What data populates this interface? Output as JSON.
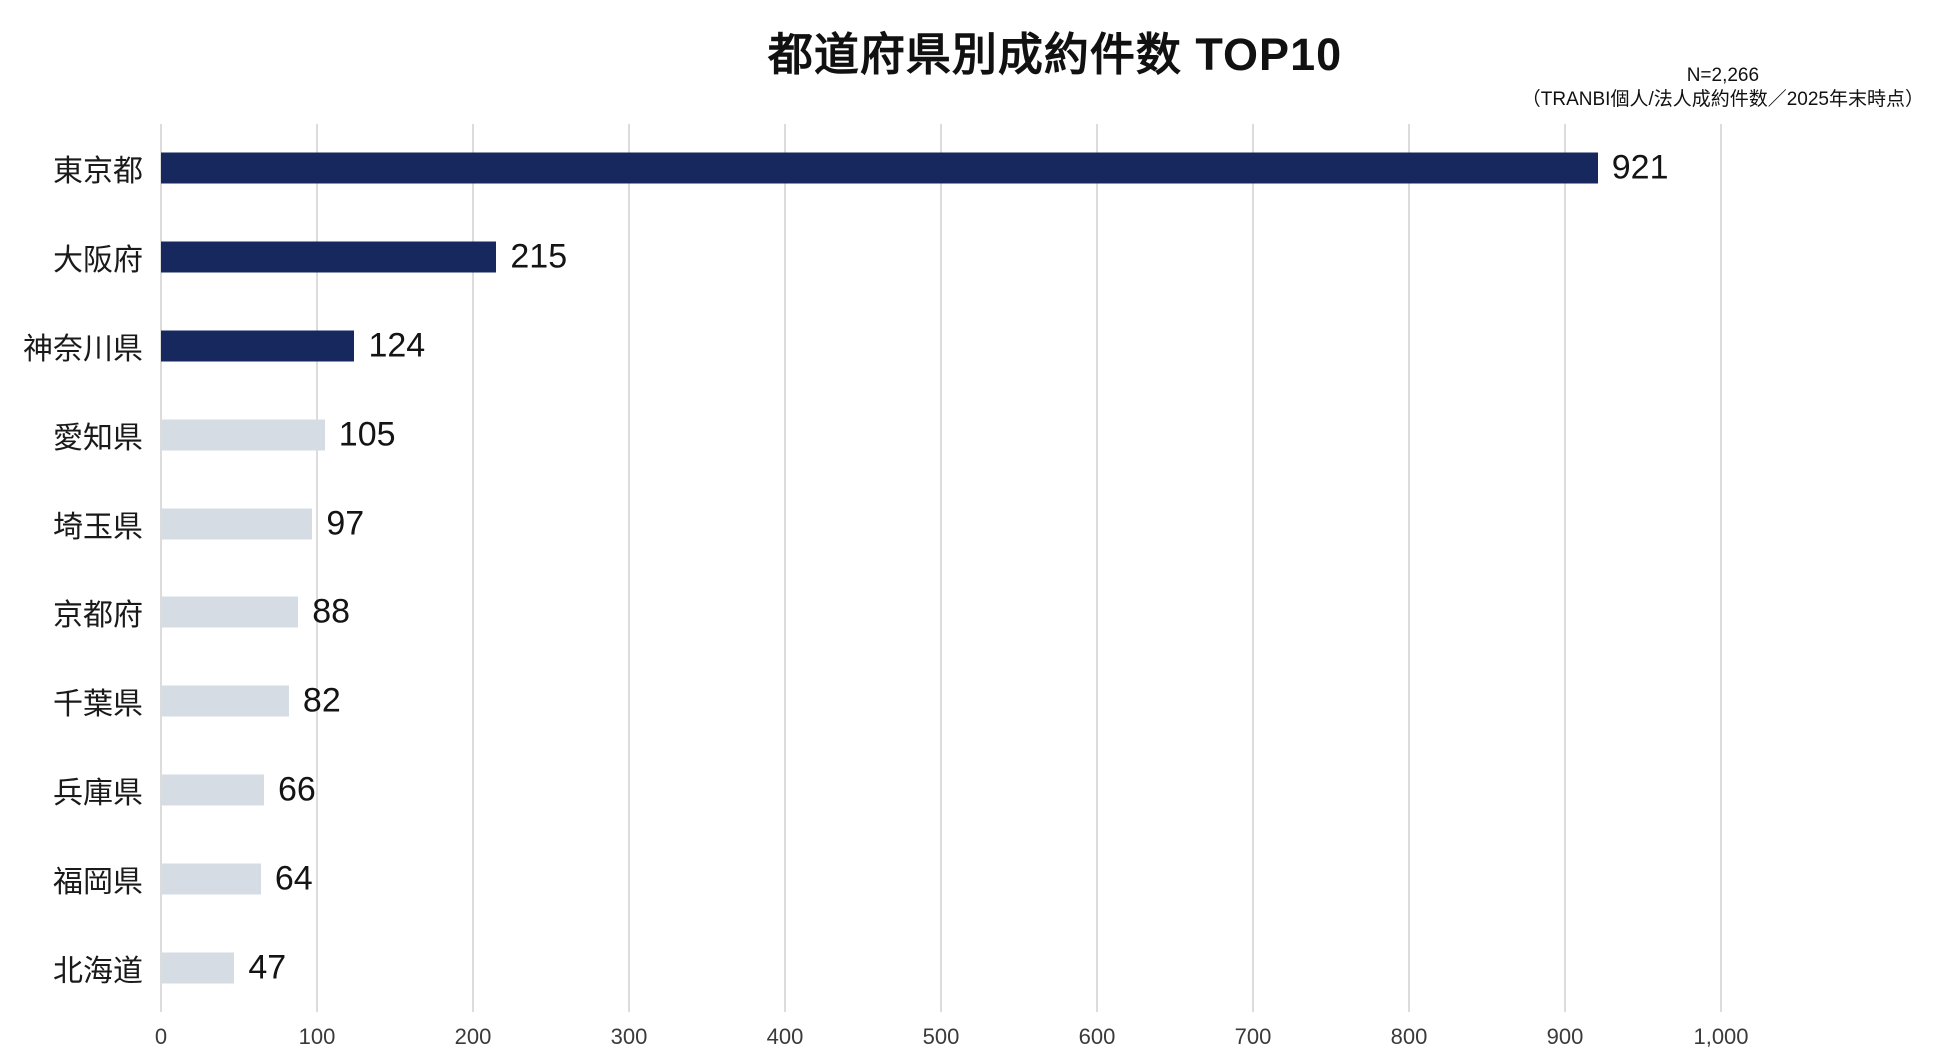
{
  "chart_data": {
    "type": "bar",
    "orientation": "horizontal",
    "title": "都道府県別成約件数 TOP10",
    "annotation": {
      "line1": "N=2,266",
      "line2": "（TRANBI個人/法人成約件数／2025年末時点）"
    },
    "categories": [
      "東京都",
      "大阪府",
      "神奈川県",
      "愛知県",
      "埼玉県",
      "京都府",
      "千葉県",
      "兵庫県",
      "福岡県",
      "北海道"
    ],
    "values": [
      921,
      215,
      124,
      105,
      97,
      88,
      82,
      66,
      64,
      47
    ],
    "value_labels": [
      "921",
      "215",
      "124",
      "105",
      "97",
      "88",
      "82",
      "66",
      "64",
      "47"
    ],
    "xlim": [
      0,
      1000
    ],
    "x_tick_values": [
      0,
      100,
      200,
      300,
      400,
      500,
      600,
      700,
      800,
      900,
      1000
    ],
    "x_tick_labels": [
      "0",
      "100",
      "200",
      "300",
      "400",
      "500",
      "600",
      "700",
      "800",
      "900",
      "1,000"
    ],
    "xlabel": "",
    "ylabel": "",
    "grid": "vertical",
    "legend": "none",
    "emphasized_count": 3,
    "colors": {
      "emphasis_bar": "#16285e",
      "default_bar": "#d6dce4",
      "gridline": "#dcdcdc",
      "tick_text": "#3a3a3a",
      "text": "#111111"
    }
  }
}
